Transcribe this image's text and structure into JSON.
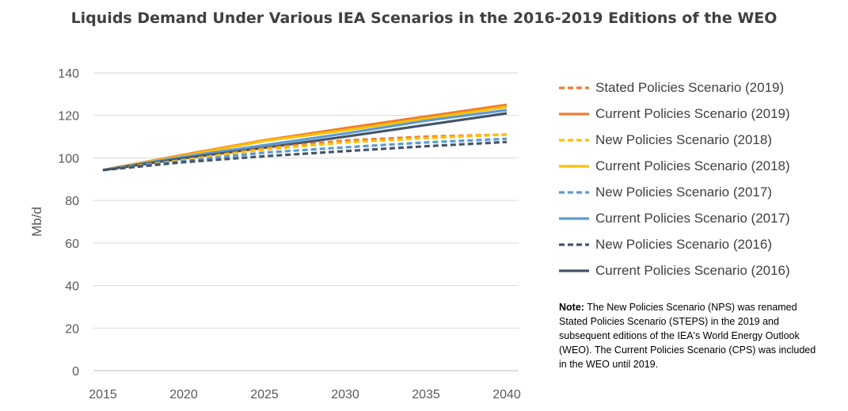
{
  "chart_data": {
    "type": "line",
    "title": "Liquids Demand Under Various IEA Scenarios in the 2016-2019 Editions of the WEO",
    "ylabel": "Mb/d",
    "xlabel": "",
    "x": [
      2015,
      2020,
      2025,
      2030,
      2035,
      2040
    ],
    "xlim": [
      2015,
      2040
    ],
    "ylim": [
      0,
      140
    ],
    "yticks": [
      0,
      20,
      40,
      60,
      80,
      100,
      120,
      140
    ],
    "grid": "horizontal",
    "legend_position": "right",
    "series": [
      {
        "name": "Stated Policies Scenario (2019)",
        "style": "dashed",
        "color": "#ED7D31",
        "values": [
          94.3,
          99.0,
          104.5,
          108.2,
          110.0,
          111.0
        ]
      },
      {
        "name": "Current Policies Scenario (2019)",
        "style": "solid",
        "color": "#ED7D31",
        "values": [
          94.3,
          101.5,
          108.3,
          114.0,
          119.5,
          125.0
        ]
      },
      {
        "name": "New Policies Scenario (2018)",
        "style": "dashed",
        "color": "#FFC000",
        "values": [
          94.3,
          99.0,
          104.0,
          107.3,
          109.3,
          111.0
        ]
      },
      {
        "name": "Current Policies Scenario (2018)",
        "style": "solid",
        "color": "#FFC000",
        "values": [
          94.3,
          101.0,
          108.0,
          113.0,
          118.5,
          124.0
        ]
      },
      {
        "name": "New Policies Scenario (2017)",
        "style": "dashed",
        "color": "#5B9BD5",
        "values": [
          94.3,
          98.5,
          102.5,
          105.0,
          107.3,
          109.0
        ]
      },
      {
        "name": "Current Policies Scenario (2017)",
        "style": "solid",
        "color": "#5B9BD5",
        "values": [
          94.3,
          100.5,
          106.0,
          111.5,
          117.5,
          122.5
        ]
      },
      {
        "name": "New Policies Scenario (2016)",
        "style": "dashed",
        "color": "#44546A",
        "values": [
          94.3,
          98.0,
          100.8,
          103.2,
          105.5,
          107.5
        ]
      },
      {
        "name": "Current Policies Scenario (2016)",
        "style": "solid",
        "color": "#44546A",
        "values": [
          94.3,
          99.8,
          104.8,
          110.0,
          115.5,
          121.0
        ]
      }
    ]
  },
  "note": {
    "label": "Note:",
    "text": "The New Policies Scenario (NPS) was renamed Stated Policies Scenario (STEPS) in the 2019 and subsequent editions of the IEA's World Energy Outlook (WEO). The Current Policies Scenario (CPS) was included in the WEO until 2019."
  }
}
